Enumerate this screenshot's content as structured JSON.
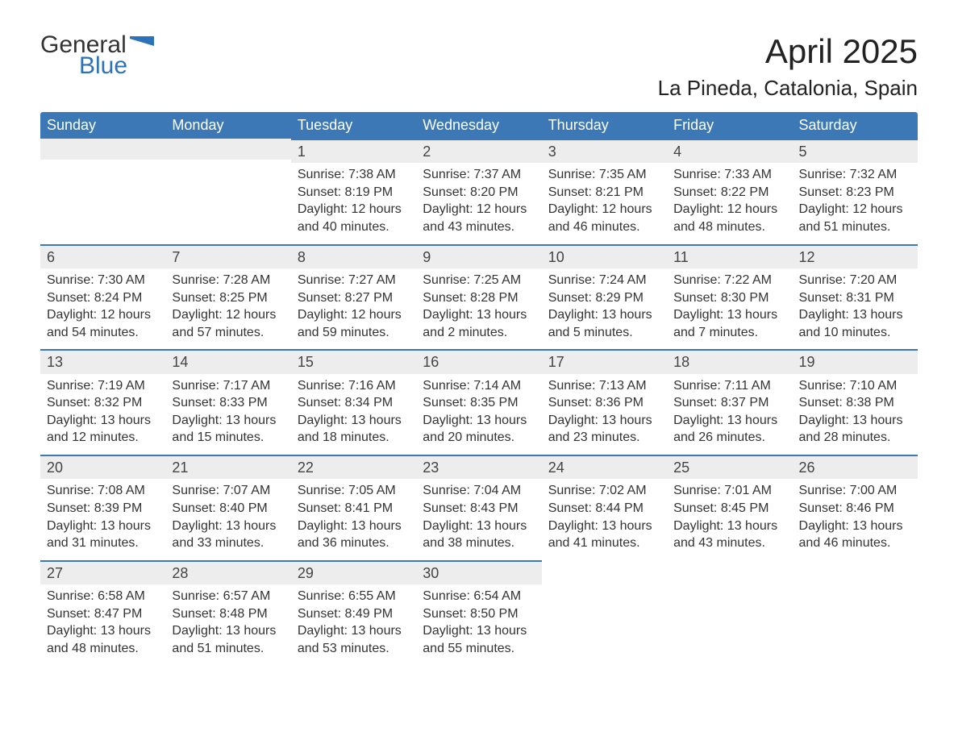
{
  "logo": {
    "line1": "General",
    "line2": "Blue"
  },
  "title": "April 2025",
  "location": "La Pineda, Catalonia, Spain",
  "colors": {
    "header_bg": "#3b78b5",
    "header_text": "#ffffff",
    "daynum_bg": "#ededed",
    "daynum_border": "#3b78b5",
    "body_text": "#333333",
    "logo_blue": "#2d72b8",
    "page_bg": "#ffffff"
  },
  "weekdays": [
    "Sunday",
    "Monday",
    "Tuesday",
    "Wednesday",
    "Thursday",
    "Friday",
    "Saturday"
  ],
  "weeks": [
    [
      {
        "day": "",
        "sunrise": "",
        "sunset": "",
        "daylight": ""
      },
      {
        "day": "",
        "sunrise": "",
        "sunset": "",
        "daylight": ""
      },
      {
        "day": "1",
        "sunrise": "Sunrise: 7:38 AM",
        "sunset": "Sunset: 8:19 PM",
        "daylight": "Daylight: 12 hours and 40 minutes."
      },
      {
        "day": "2",
        "sunrise": "Sunrise: 7:37 AM",
        "sunset": "Sunset: 8:20 PM",
        "daylight": "Daylight: 12 hours and 43 minutes."
      },
      {
        "day": "3",
        "sunrise": "Sunrise: 7:35 AM",
        "sunset": "Sunset: 8:21 PM",
        "daylight": "Daylight: 12 hours and 46 minutes."
      },
      {
        "day": "4",
        "sunrise": "Sunrise: 7:33 AM",
        "sunset": "Sunset: 8:22 PM",
        "daylight": "Daylight: 12 hours and 48 minutes."
      },
      {
        "day": "5",
        "sunrise": "Sunrise: 7:32 AM",
        "sunset": "Sunset: 8:23 PM",
        "daylight": "Daylight: 12 hours and 51 minutes."
      }
    ],
    [
      {
        "day": "6",
        "sunrise": "Sunrise: 7:30 AM",
        "sunset": "Sunset: 8:24 PM",
        "daylight": "Daylight: 12 hours and 54 minutes."
      },
      {
        "day": "7",
        "sunrise": "Sunrise: 7:28 AM",
        "sunset": "Sunset: 8:25 PM",
        "daylight": "Daylight: 12 hours and 57 minutes."
      },
      {
        "day": "8",
        "sunrise": "Sunrise: 7:27 AM",
        "sunset": "Sunset: 8:27 PM",
        "daylight": "Daylight: 12 hours and 59 minutes."
      },
      {
        "day": "9",
        "sunrise": "Sunrise: 7:25 AM",
        "sunset": "Sunset: 8:28 PM",
        "daylight": "Daylight: 13 hours and 2 minutes."
      },
      {
        "day": "10",
        "sunrise": "Sunrise: 7:24 AM",
        "sunset": "Sunset: 8:29 PM",
        "daylight": "Daylight: 13 hours and 5 minutes."
      },
      {
        "day": "11",
        "sunrise": "Sunrise: 7:22 AM",
        "sunset": "Sunset: 8:30 PM",
        "daylight": "Daylight: 13 hours and 7 minutes."
      },
      {
        "day": "12",
        "sunrise": "Sunrise: 7:20 AM",
        "sunset": "Sunset: 8:31 PM",
        "daylight": "Daylight: 13 hours and 10 minutes."
      }
    ],
    [
      {
        "day": "13",
        "sunrise": "Sunrise: 7:19 AM",
        "sunset": "Sunset: 8:32 PM",
        "daylight": "Daylight: 13 hours and 12 minutes."
      },
      {
        "day": "14",
        "sunrise": "Sunrise: 7:17 AM",
        "sunset": "Sunset: 8:33 PM",
        "daylight": "Daylight: 13 hours and 15 minutes."
      },
      {
        "day": "15",
        "sunrise": "Sunrise: 7:16 AM",
        "sunset": "Sunset: 8:34 PM",
        "daylight": "Daylight: 13 hours and 18 minutes."
      },
      {
        "day": "16",
        "sunrise": "Sunrise: 7:14 AM",
        "sunset": "Sunset: 8:35 PM",
        "daylight": "Daylight: 13 hours and 20 minutes."
      },
      {
        "day": "17",
        "sunrise": "Sunrise: 7:13 AM",
        "sunset": "Sunset: 8:36 PM",
        "daylight": "Daylight: 13 hours and 23 minutes."
      },
      {
        "day": "18",
        "sunrise": "Sunrise: 7:11 AM",
        "sunset": "Sunset: 8:37 PM",
        "daylight": "Daylight: 13 hours and 26 minutes."
      },
      {
        "day": "19",
        "sunrise": "Sunrise: 7:10 AM",
        "sunset": "Sunset: 8:38 PM",
        "daylight": "Daylight: 13 hours and 28 minutes."
      }
    ],
    [
      {
        "day": "20",
        "sunrise": "Sunrise: 7:08 AM",
        "sunset": "Sunset: 8:39 PM",
        "daylight": "Daylight: 13 hours and 31 minutes."
      },
      {
        "day": "21",
        "sunrise": "Sunrise: 7:07 AM",
        "sunset": "Sunset: 8:40 PM",
        "daylight": "Daylight: 13 hours and 33 minutes."
      },
      {
        "day": "22",
        "sunrise": "Sunrise: 7:05 AM",
        "sunset": "Sunset: 8:41 PM",
        "daylight": "Daylight: 13 hours and 36 minutes."
      },
      {
        "day": "23",
        "sunrise": "Sunrise: 7:04 AM",
        "sunset": "Sunset: 8:43 PM",
        "daylight": "Daylight: 13 hours and 38 minutes."
      },
      {
        "day": "24",
        "sunrise": "Sunrise: 7:02 AM",
        "sunset": "Sunset: 8:44 PM",
        "daylight": "Daylight: 13 hours and 41 minutes."
      },
      {
        "day": "25",
        "sunrise": "Sunrise: 7:01 AM",
        "sunset": "Sunset: 8:45 PM",
        "daylight": "Daylight: 13 hours and 43 minutes."
      },
      {
        "day": "26",
        "sunrise": "Sunrise: 7:00 AM",
        "sunset": "Sunset: 8:46 PM",
        "daylight": "Daylight: 13 hours and 46 minutes."
      }
    ],
    [
      {
        "day": "27",
        "sunrise": "Sunrise: 6:58 AM",
        "sunset": "Sunset: 8:47 PM",
        "daylight": "Daylight: 13 hours and 48 minutes."
      },
      {
        "day": "28",
        "sunrise": "Sunrise: 6:57 AM",
        "sunset": "Sunset: 8:48 PM",
        "daylight": "Daylight: 13 hours and 51 minutes."
      },
      {
        "day": "29",
        "sunrise": "Sunrise: 6:55 AM",
        "sunset": "Sunset: 8:49 PM",
        "daylight": "Daylight: 13 hours and 53 minutes."
      },
      {
        "day": "30",
        "sunrise": "Sunrise: 6:54 AM",
        "sunset": "Sunset: 8:50 PM",
        "daylight": "Daylight: 13 hours and 55 minutes."
      },
      {
        "day": "",
        "sunrise": "",
        "sunset": "",
        "daylight": ""
      },
      {
        "day": "",
        "sunrise": "",
        "sunset": "",
        "daylight": ""
      },
      {
        "day": "",
        "sunrise": "",
        "sunset": "",
        "daylight": ""
      }
    ]
  ]
}
